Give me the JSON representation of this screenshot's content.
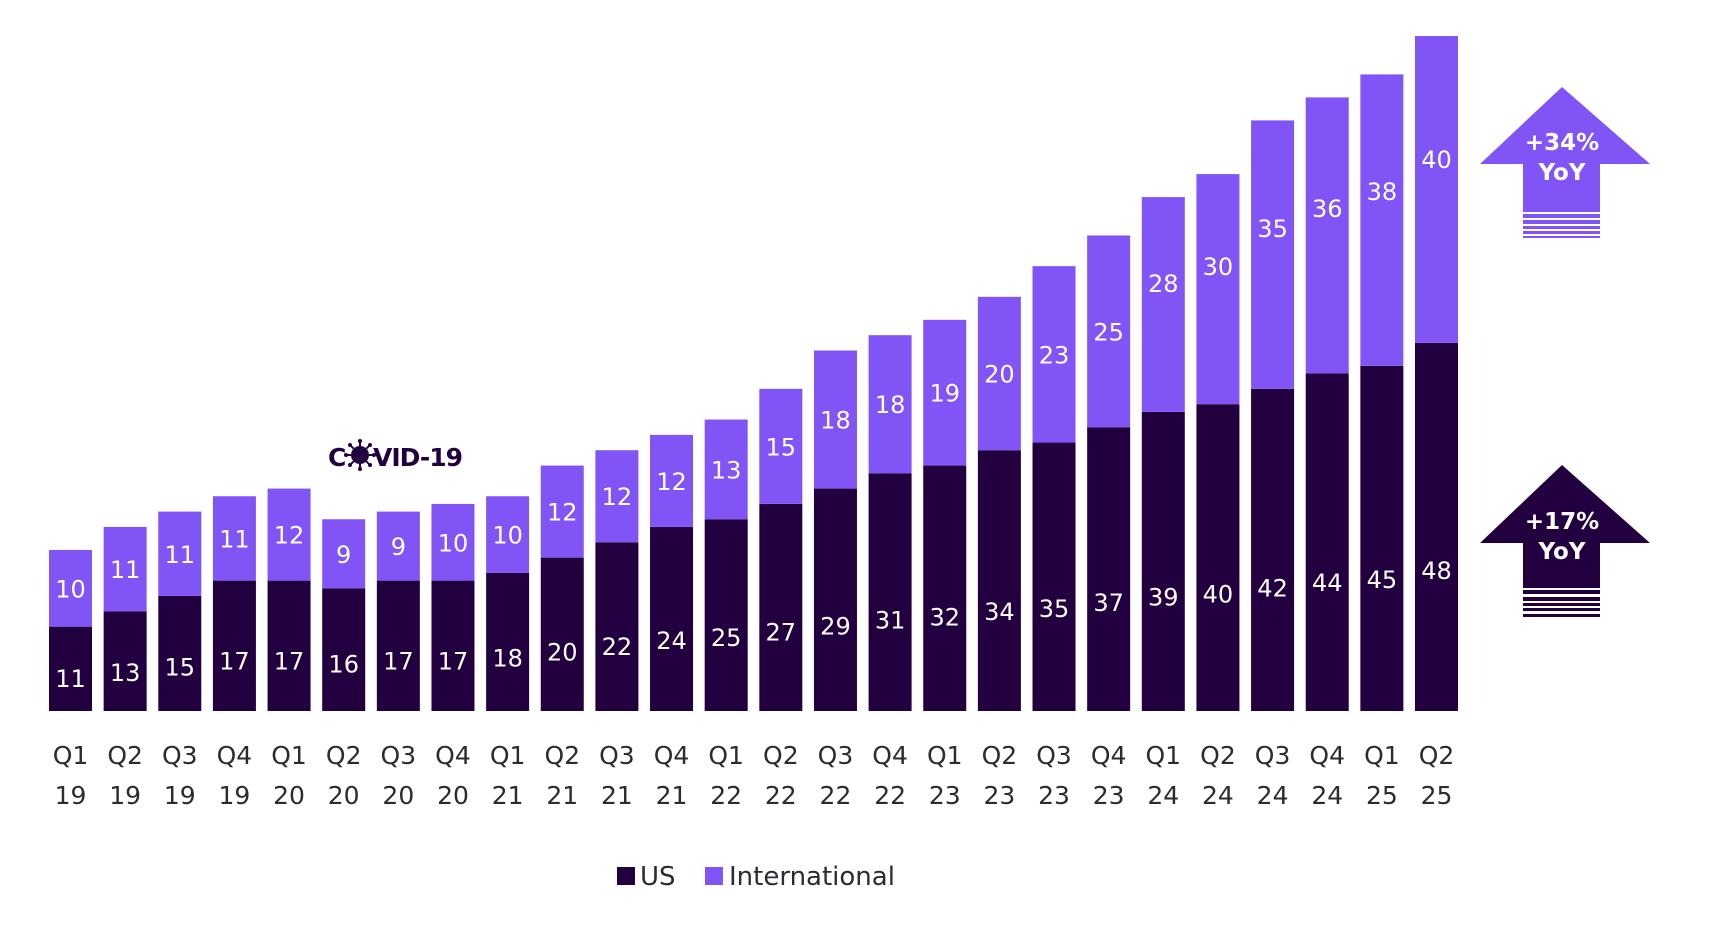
{
  "chart_data": {
    "type": "bar",
    "stacked": true,
    "title": "",
    "xlabel": "",
    "ylabel": "",
    "ylim": [
      0,
      90
    ],
    "grid": false,
    "categories": [
      [
        "Q1",
        "19"
      ],
      [
        "Q2",
        "19"
      ],
      [
        "Q3",
        "19"
      ],
      [
        "Q4",
        "19"
      ],
      [
        "Q1",
        "20"
      ],
      [
        "Q2",
        "20"
      ],
      [
        "Q3",
        "20"
      ],
      [
        "Q4",
        "20"
      ],
      [
        "Q1",
        "21"
      ],
      [
        "Q2",
        "21"
      ],
      [
        "Q3",
        "21"
      ],
      [
        "Q4",
        "21"
      ],
      [
        "Q1",
        "22"
      ],
      [
        "Q2",
        "22"
      ],
      [
        "Q3",
        "22"
      ],
      [
        "Q4",
        "22"
      ],
      [
        "Q1",
        "23"
      ],
      [
        "Q2",
        "23"
      ],
      [
        "Q3",
        "23"
      ],
      [
        "Q4",
        "23"
      ],
      [
        "Q1",
        "24"
      ],
      [
        "Q2",
        "24"
      ],
      [
        "Q3",
        "24"
      ],
      [
        "Q4",
        "24"
      ],
      [
        "Q1",
        "25"
      ],
      [
        "Q2",
        "25"
      ]
    ],
    "series": [
      {
        "name": "US",
        "color": "#22003f",
        "values": [
          11,
          13,
          15,
          17,
          17,
          16,
          17,
          17,
          18,
          20,
          22,
          24,
          25,
          27,
          29,
          31,
          32,
          34,
          35,
          37,
          39,
          40,
          42,
          44,
          45,
          48
        ]
      },
      {
        "name": "International",
        "color": "#8155f5",
        "values": [
          10,
          11,
          11,
          11,
          12,
          9,
          9,
          10,
          10,
          12,
          12,
          12,
          13,
          15,
          18,
          18,
          19,
          20,
          23,
          25,
          28,
          30,
          35,
          36,
          38,
          40
        ]
      }
    ],
    "legend": {
      "placement": "bottom-center",
      "entries": [
        {
          "label": "US",
          "color": "#22003f"
        },
        {
          "label": "International",
          "color": "#8155f5"
        }
      ]
    },
    "annotations": [
      {
        "type": "event-marker",
        "text_before": "C",
        "icon": "virus-icon",
        "text_after": "VID-19",
        "near_category": "Q2 20"
      },
      {
        "type": "growth-arrow",
        "series": "International",
        "line1": "+34%",
        "line2": "YoY",
        "color": "#8155f5"
      },
      {
        "type": "growth-arrow",
        "series": "US",
        "line1": "+17%",
        "line2": "YoY",
        "color": "#22003f"
      }
    ]
  }
}
